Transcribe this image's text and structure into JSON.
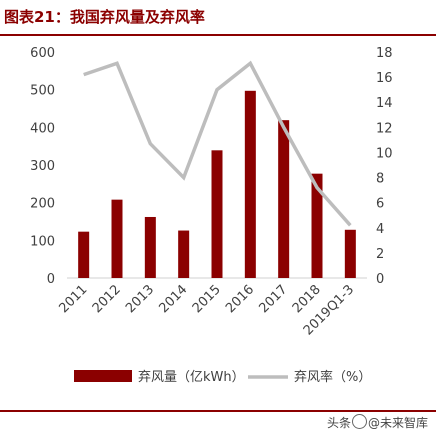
{
  "figure": {
    "title": "图表21：我国弃风量及弃风率"
  },
  "watermark": {
    "prefix": "头条",
    "text": "@未来智库"
  },
  "colors": {
    "bar": "#8B0000",
    "line": "#BDBDBD",
    "accent": "#8B0000"
  },
  "chart_data": {
    "type": "bar",
    "categories": [
      "2011",
      "2012",
      "2013",
      "2014",
      "2015",
      "2016",
      "2017",
      "2018",
      "2019Q1-3"
    ],
    "series": [
      {
        "name": "弃风量（亿kWh）",
        "type": "bar",
        "axis": "left",
        "values": [
          123,
          208,
          162,
          126,
          339,
          497,
          419,
          277,
          128
        ]
      },
      {
        "name": "弃风率（%）",
        "type": "line",
        "axis": "right",
        "values": [
          16.2,
          17.1,
          10.7,
          8.0,
          15.0,
          17.1,
          12.0,
          7.2,
          4.2
        ]
      }
    ],
    "y_left": {
      "ylim": [
        0,
        600
      ],
      "ticks": [
        "0",
        "100",
        "200",
        "300",
        "400",
        "500",
        "600"
      ]
    },
    "y_right": {
      "ylim": [
        0,
        18
      ],
      "ticks": [
        "0",
        "2",
        "4",
        "6",
        "8",
        "10",
        "12",
        "14",
        "16",
        "18"
      ]
    },
    "grid": false,
    "legend_position": "bottom"
  }
}
